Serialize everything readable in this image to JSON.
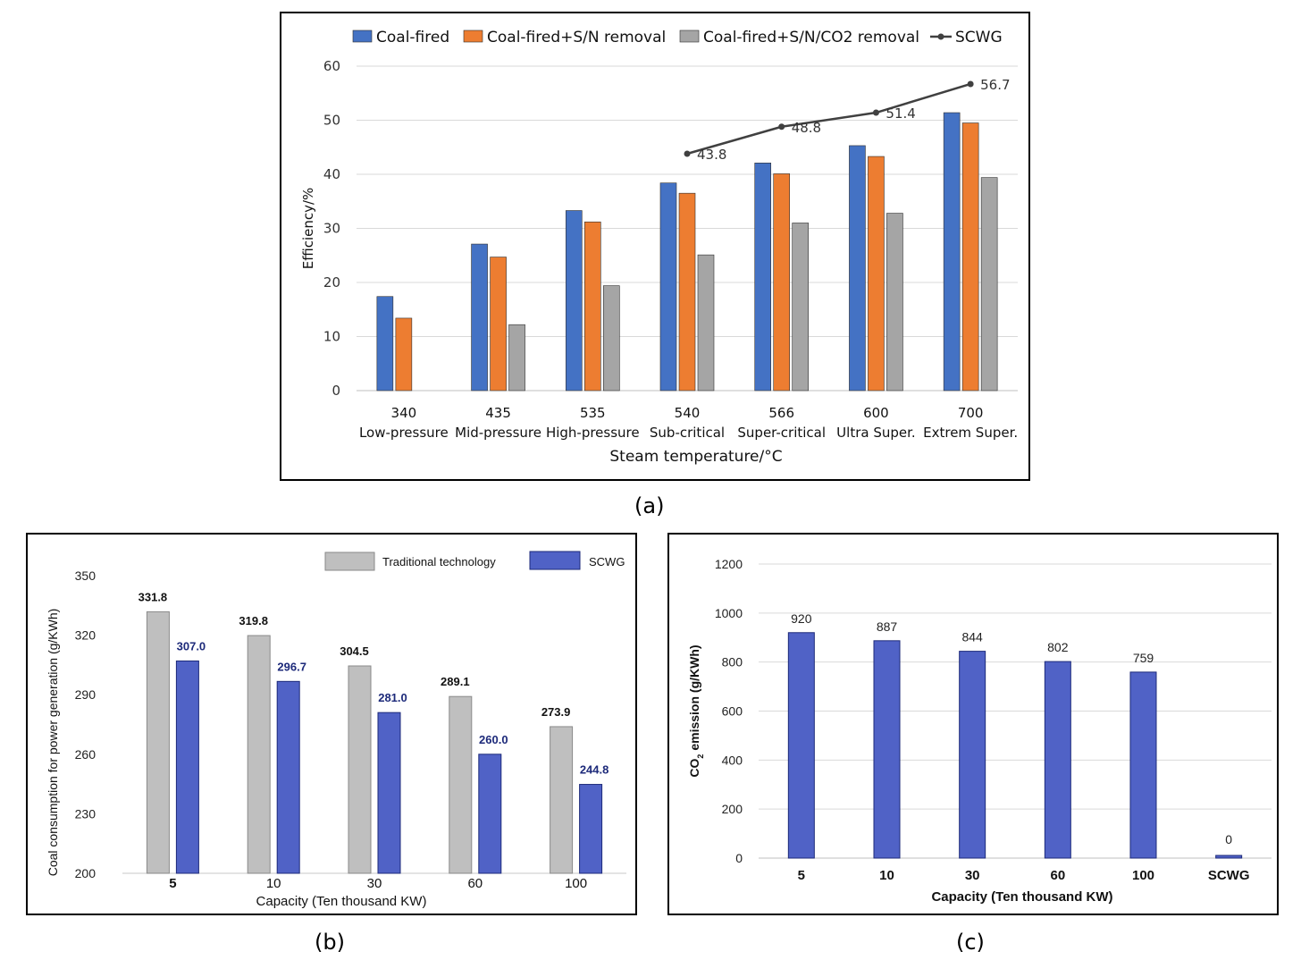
{
  "captions": {
    "a": "(a)",
    "b": "(b)",
    "c": "(c)"
  },
  "chart_data": [
    {
      "id": "a",
      "type": "bar",
      "title": "",
      "xlabel": "Steam temperature/°C",
      "ylabel": "Efficiency/%",
      "ylim": [
        0,
        60
      ],
      "yticks": [
        0,
        10,
        20,
        30,
        40,
        50,
        60
      ],
      "categories": [
        "340",
        "435",
        "535",
        "540",
        "566",
        "600",
        "700"
      ],
      "category_sublabels": [
        "Low-pressure",
        "Mid-pressure",
        "High-pressure",
        "Sub-critical",
        "Super-critical",
        "Ultra Super.",
        "Extrem Super."
      ],
      "series": [
        {
          "name": "Coal-fired",
          "kind": "bar",
          "color": "#4472c4",
          "values": [
            17.4,
            27.1,
            33.3,
            38.4,
            42.1,
            45.3,
            51.4
          ]
        },
        {
          "name": "Coal-fired+S/N removal",
          "kind": "bar",
          "color": "#ed7d31",
          "values": [
            13.4,
            24.7,
            31.2,
            36.5,
            40.1,
            43.3,
            49.5
          ]
        },
        {
          "name": "Coal-fired+S/N/CO2 removal",
          "kind": "bar",
          "color": "#a5a5a5",
          "values": [
            null,
            12.2,
            19.4,
            25.1,
            31.0,
            32.8,
            39.4
          ]
        },
        {
          "name": "SCWG",
          "kind": "line",
          "color": "#404040",
          "values": [
            null,
            null,
            null,
            43.8,
            48.8,
            51.4,
            56.7
          ],
          "labels": [
            "",
            "",
            "",
            "43.8",
            "48.8",
            "51.4",
            "56.7"
          ]
        }
      ],
      "legend_position": "top",
      "grid": true
    },
    {
      "id": "b",
      "type": "bar",
      "title": "",
      "xlabel": "Capacity (Ten thousand KW)",
      "ylabel": "Coal consumption for power generation (g/KWh)",
      "ylim": [
        200,
        350
      ],
      "yticks": [
        200,
        230,
        260,
        290,
        320,
        350
      ],
      "categories": [
        "5",
        "10",
        "30",
        "60",
        "100"
      ],
      "series": [
        {
          "name": "Traditional technology",
          "color": "#bfbfbf",
          "values": [
            331.8,
            319.8,
            304.5,
            289.1,
            273.9
          ],
          "labels": [
            "331.8",
            "319.8",
            "304.5",
            "289.1",
            "273.9"
          ]
        },
        {
          "name": "SCWG",
          "color": "#5062c6",
          "values": [
            307.0,
            296.7,
            281.0,
            260.0,
            244.8
          ],
          "labels": [
            "307.0",
            "296.7",
            "281.0",
            "260.0",
            "244.8"
          ]
        }
      ],
      "legend_position": "top-right",
      "grid": false
    },
    {
      "id": "c",
      "type": "bar",
      "title": "",
      "xlabel": "Capacity (Ten thousand KW)",
      "ylabel": "CO2 emission (g/KWh)",
      "ylim": [
        0,
        1200
      ],
      "yticks": [
        0,
        200,
        400,
        600,
        800,
        1000,
        1200
      ],
      "categories": [
        "5",
        "10",
        "30",
        "60",
        "100",
        "SCWG"
      ],
      "series": [
        {
          "name": "CO2 emission",
          "color": "#5062c6",
          "values": [
            920,
            887,
            844,
            802,
            759,
            0
          ],
          "labels": [
            "920",
            "887",
            "844",
            "802",
            "759",
            "0"
          ]
        }
      ],
      "grid": true
    }
  ]
}
